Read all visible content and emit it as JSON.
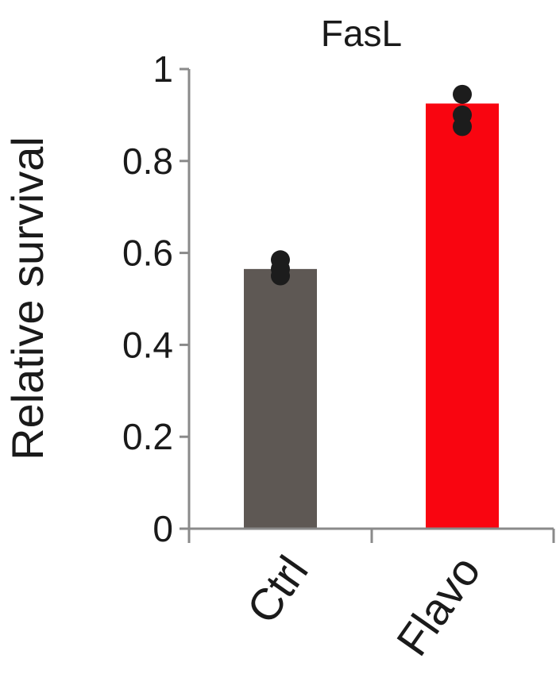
{
  "chart_data": {
    "type": "bar",
    "title": "FasL",
    "xlabel": "",
    "ylabel": "Relative survival",
    "ylim": [
      0,
      1
    ],
    "yticks": [
      "0",
      "0.2",
      "0.4",
      "0.6",
      "0.8",
      "1"
    ],
    "yticks_values": [
      0,
      0.2,
      0.4,
      0.6,
      0.8,
      1
    ],
    "categories": [
      "Ctrl",
      "Flavo"
    ],
    "values": [
      0.565,
      0.925
    ],
    "bar_colors": [
      "#5e5854",
      "#f90510"
    ],
    "points": [
      [
        0.585,
        0.565,
        0.55
      ],
      [
        0.945,
        0.9,
        0.875
      ]
    ],
    "point_color": "#1c1c1c",
    "axis_color": "#8a8a8a"
  }
}
